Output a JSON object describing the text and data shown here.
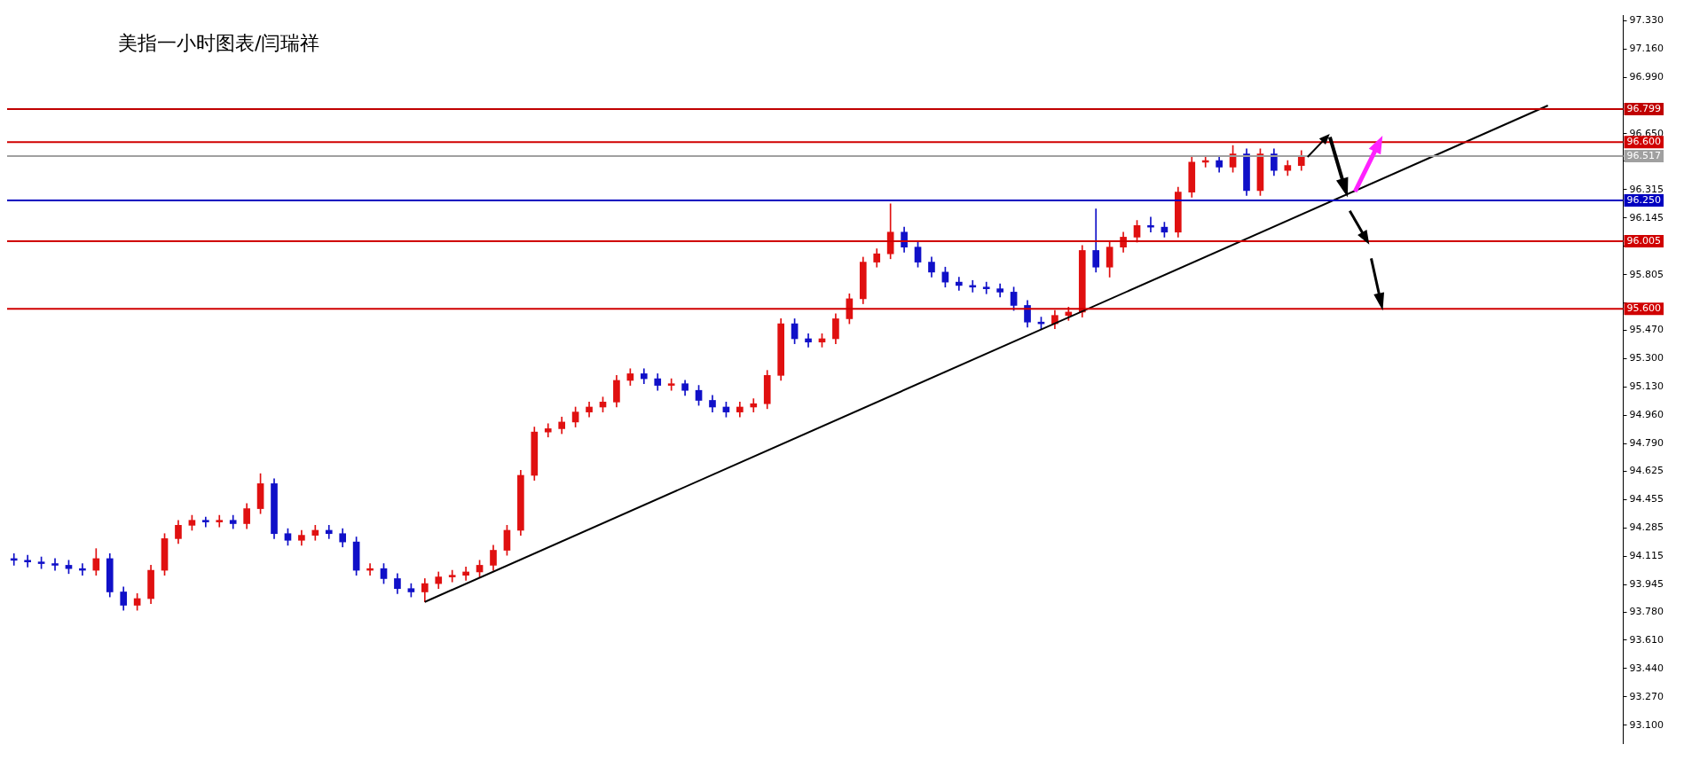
{
  "chart_data": {
    "type": "candlestick",
    "title": "美指一小时图表/闫瑞祥",
    "categories": [
      null,
      null,
      null,
      null,
      null,
      null,
      null,
      null,
      null,
      null,
      null,
      null,
      null,
      null,
      null,
      null,
      null,
      null,
      null,
      null,
      null,
      null,
      null,
      null,
      null,
      null,
      null,
      null,
      null,
      null,
      null,
      null,
      null,
      null,
      null,
      null,
      null,
      null,
      null,
      null,
      null,
      null,
      null,
      null,
      null,
      null,
      null,
      null,
      null,
      null,
      null,
      null,
      null,
      null,
      null,
      null,
      null,
      null,
      null,
      null,
      null,
      null,
      null,
      null,
      null,
      null,
      null,
      null,
      null,
      null,
      null,
      null,
      null,
      null,
      null,
      null,
      null,
      null,
      null,
      null,
      null,
      null,
      null,
      null,
      null,
      null,
      null,
      null,
      null,
      null,
      null,
      null,
      null,
      null,
      null,
      null,
      null,
      null,
      null,
      null,
      null,
      null,
      null,
      null,
      null,
      null,
      null,
      null,
      null,
      null,
      null,
      null,
      null,
      null,
      null,
      null,
      null,
      null
    ],
    "ohlc": [
      [
        94.1,
        94.13,
        94.06,
        94.09
      ],
      [
        94.09,
        94.12,
        94.05,
        94.08
      ],
      [
        94.08,
        94.11,
        94.04,
        94.07
      ],
      [
        94.07,
        94.1,
        94.03,
        94.06
      ],
      [
        94.06,
        94.09,
        94.01,
        94.04
      ],
      [
        94.04,
        94.07,
        94.0,
        94.03
      ],
      [
        94.03,
        94.16,
        94.0,
        94.1
      ],
      [
        94.1,
        94.13,
        93.87,
        93.9
      ],
      [
        93.9,
        93.93,
        93.79,
        93.82
      ],
      [
        93.82,
        93.89,
        93.79,
        93.86
      ],
      [
        93.86,
        94.06,
        93.83,
        94.03
      ],
      [
        94.03,
        94.25,
        94.0,
        94.22
      ],
      [
        94.22,
        94.33,
        94.19,
        94.3
      ],
      [
        94.3,
        94.36,
        94.27,
        94.33
      ],
      [
        94.33,
        94.35,
        94.29,
        94.32
      ],
      [
        94.32,
        94.36,
        94.29,
        94.33
      ],
      [
        94.33,
        94.36,
        94.28,
        94.31
      ],
      [
        94.31,
        94.43,
        94.28,
        94.4
      ],
      [
        94.4,
        94.61,
        94.37,
        94.55
      ],
      [
        94.55,
        94.58,
        94.22,
        94.25
      ],
      [
        94.25,
        94.28,
        94.18,
        94.21
      ],
      [
        94.21,
        94.27,
        94.18,
        94.24
      ],
      [
        94.24,
        94.3,
        94.21,
        94.27
      ],
      [
        94.27,
        94.3,
        94.22,
        94.25
      ],
      [
        94.25,
        94.28,
        94.17,
        94.2
      ],
      [
        94.2,
        94.23,
        94.0,
        94.03
      ],
      [
        94.03,
        94.07,
        94.0,
        94.04
      ],
      [
        94.04,
        94.07,
        93.95,
        93.98
      ],
      [
        93.98,
        94.01,
        93.89,
        93.92
      ],
      [
        93.92,
        93.95,
        93.87,
        93.9
      ],
      [
        93.9,
        93.98,
        93.84,
        93.95
      ],
      [
        93.95,
        94.02,
        93.92,
        93.99
      ],
      [
        93.99,
        94.03,
        93.96,
        94.0
      ],
      [
        94.0,
        94.05,
        93.97,
        94.02
      ],
      [
        94.02,
        94.09,
        93.99,
        94.06
      ],
      [
        94.06,
        94.18,
        94.03,
        94.15
      ],
      [
        94.15,
        94.3,
        94.12,
        94.27
      ],
      [
        94.27,
        94.63,
        94.24,
        94.6
      ],
      [
        94.6,
        94.89,
        94.57,
        94.86
      ],
      [
        94.86,
        94.91,
        94.83,
        94.88
      ],
      [
        94.88,
        94.95,
        94.85,
        94.92
      ],
      [
        94.92,
        95.01,
        94.89,
        94.98
      ],
      [
        94.98,
        95.04,
        94.95,
        95.01
      ],
      [
        95.01,
        95.07,
        94.98,
        95.04
      ],
      [
        95.04,
        95.2,
        95.01,
        95.17
      ],
      [
        95.17,
        95.24,
        95.14,
        95.21
      ],
      [
        95.21,
        95.24,
        95.15,
        95.18
      ],
      [
        95.18,
        95.21,
        95.11,
        95.14
      ],
      [
        95.14,
        95.18,
        95.11,
        95.15
      ],
      [
        95.15,
        95.17,
        95.08,
        95.11
      ],
      [
        95.11,
        95.14,
        95.02,
        95.05
      ],
      [
        95.05,
        95.08,
        94.98,
        95.01
      ],
      [
        95.01,
        95.04,
        94.95,
        94.98
      ],
      [
        94.98,
        95.04,
        94.95,
        95.01
      ],
      [
        95.01,
        95.06,
        94.98,
        95.03
      ],
      [
        95.03,
        95.23,
        95.0,
        95.2
      ],
      [
        95.2,
        95.54,
        95.17,
        95.51
      ],
      [
        95.51,
        95.54,
        95.39,
        95.42
      ],
      [
        95.42,
        95.45,
        95.37,
        95.4
      ],
      [
        95.4,
        95.45,
        95.37,
        95.42
      ],
      [
        95.42,
        95.57,
        95.39,
        95.54
      ],
      [
        95.54,
        95.69,
        95.51,
        95.66
      ],
      [
        95.66,
        95.91,
        95.63,
        95.88
      ],
      [
        95.88,
        95.96,
        95.85,
        95.93
      ],
      [
        95.93,
        96.23,
        95.9,
        96.06
      ],
      [
        96.06,
        96.09,
        95.94,
        95.97
      ],
      [
        95.97,
        96.0,
        95.85,
        95.88
      ],
      [
        95.88,
        95.91,
        95.79,
        95.82
      ],
      [
        95.82,
        95.85,
        95.73,
        95.76
      ],
      [
        95.76,
        95.79,
        95.71,
        95.74
      ],
      [
        95.74,
        95.77,
        95.7,
        95.73
      ],
      [
        95.73,
        95.76,
        95.69,
        95.72
      ],
      [
        95.72,
        95.75,
        95.67,
        95.7
      ],
      [
        95.7,
        95.73,
        95.59,
        95.62
      ],
      [
        95.62,
        95.65,
        95.49,
        95.52
      ],
      [
        95.52,
        95.55,
        95.48,
        95.51
      ],
      [
        95.51,
        95.59,
        95.48,
        95.56
      ],
      [
        95.56,
        95.61,
        95.53,
        95.58
      ],
      [
        95.58,
        95.98,
        95.55,
        95.95
      ],
      [
        95.95,
        96.2,
        95.82,
        95.85
      ],
      [
        95.85,
        96.0,
        95.79,
        95.97
      ],
      [
        95.97,
        96.06,
        95.94,
        96.03
      ],
      [
        96.03,
        96.13,
        96.0,
        96.1
      ],
      [
        96.1,
        96.15,
        96.06,
        96.09
      ],
      [
        96.09,
        96.12,
        96.03,
        96.06
      ],
      [
        96.06,
        96.33,
        96.03,
        96.3
      ],
      [
        96.3,
        96.51,
        96.27,
        96.48
      ],
      [
        96.48,
        96.52,
        96.45,
        96.49
      ],
      [
        96.49,
        96.51,
        96.42,
        96.45
      ],
      [
        96.45,
        96.58,
        96.42,
        96.53
      ],
      [
        96.53,
        96.56,
        96.28,
        96.31
      ],
      [
        96.31,
        96.56,
        96.28,
        96.53
      ],
      [
        96.53,
        96.56,
        96.4,
        96.43
      ],
      [
        96.43,
        96.49,
        96.4,
        96.46
      ],
      [
        96.46,
        96.55,
        96.43,
        96.52
      ],
      null,
      null,
      null,
      null,
      null,
      null,
      null,
      null,
      null,
      null,
      null,
      null,
      null,
      null,
      null,
      null,
      null,
      null,
      null,
      null,
      null,
      null,
      null
    ],
    "colors": [
      "#1010c8",
      "#1010c8",
      "#1010c8",
      "#1010c8",
      "#1010c8",
      "#1010c8",
      "#e01010",
      "#1010c8",
      "#1010c8",
      "#e01010",
      "#e01010",
      "#e01010",
      "#e01010",
      "#e01010",
      "#1010c8",
      "#e01010",
      "#1010c8",
      "#e01010",
      "#e01010",
      "#1010c8",
      "#1010c8",
      "#e01010",
      "#e01010",
      "#1010c8",
      "#1010c8",
      "#1010c8",
      "#e01010",
      "#1010c8",
      "#1010c8",
      "#1010c8",
      "#e01010",
      "#e01010",
      "#e01010",
      "#e01010",
      "#e01010",
      "#e01010",
      "#e01010",
      "#e01010",
      "#e01010",
      "#e01010",
      "#e01010",
      "#e01010",
      "#e01010",
      "#e01010",
      "#e01010",
      "#e01010",
      "#1010c8",
      "#1010c8",
      "#e01010",
      "#1010c8",
      "#1010c8",
      "#1010c8",
      "#1010c8",
      "#e01010",
      "#e01010",
      "#e01010",
      "#e01010",
      "#1010c8",
      "#1010c8",
      "#e01010",
      "#e01010",
      "#e01010",
      "#e01010",
      "#e01010",
      "#e01010",
      "#1010c8",
      "#1010c8",
      "#1010c8",
      "#1010c8",
      "#1010c8",
      "#1010c8",
      "#1010c8",
      "#1010c8",
      "#1010c8",
      "#1010c8",
      "#1010c8",
      "#e01010",
      "#e01010",
      "#e01010",
      "#1010c8",
      "#e01010",
      "#e01010",
      "#e01010",
      "#1010c8",
      "#1010c8",
      "#e01010",
      "#e01010",
      "#e01010",
      "#1010c8",
      "#e01010",
      "#1010c8",
      "#e01010",
      "#1010c8",
      "#e01010",
      "#e01010",
      null,
      null,
      null,
      null,
      null,
      null,
      null,
      null,
      null,
      null,
      null,
      null,
      null,
      null,
      null,
      null,
      null,
      null,
      null,
      null,
      null,
      null,
      null
    ],
    "series": [
      {
        "type": "line",
        "color": "#000000",
        "values": [
          null,
          null,
          null,
          null,
          null,
          null,
          null,
          null,
          null,
          null,
          null,
          null,
          null,
          null,
          null,
          null,
          null,
          null,
          null,
          null,
          null,
          null,
          null,
          null,
          null,
          null,
          null,
          null,
          null,
          null,
          93.84,
          null,
          null,
          null,
          null,
          null,
          null,
          null,
          null,
          null,
          null,
          null,
          null,
          null,
          null,
          null,
          null,
          null,
          null,
          null,
          null,
          null,
          null,
          null,
          null,
          null,
          null,
          null,
          null,
          null,
          null,
          null,
          null,
          null,
          null,
          null,
          null,
          null,
          null,
          null,
          null,
          null,
          null,
          null,
          null,
          null,
          null,
          null,
          null,
          null,
          null,
          null,
          null,
          null,
          null,
          null,
          null,
          null,
          null,
          null,
          null,
          null,
          null,
          null,
          null,
          null,
          null,
          null,
          null,
          null,
          null,
          null,
          null,
          null,
          null,
          null,
          null,
          null,
          null,
          null,
          null,
          null,
          96.82,
          null,
          null,
          null,
          null,
          null
        ]
      }
    ],
    "ylim": [
      92.99,
      97.36
    ],
    "yticks": [
      {
        "value": 97.33,
        "label": "97.330"
      },
      {
        "value": 97.16,
        "label": "97.160"
      },
      {
        "value": 96.99,
        "label": "96.990"
      },
      {
        "value": 96.65,
        "label": "96.650"
      },
      {
        "value": 96.485,
        "label": null
      },
      {
        "value": 96.315,
        "label": "96.315"
      },
      {
        "value": 96.145,
        "label": "96.145"
      },
      {
        "value": 95.975,
        "label": null
      },
      {
        "value": 95.805,
        "label": "95.805"
      },
      {
        "value": 95.635,
        "label": null
      },
      {
        "value": 95.47,
        "label": "95.470"
      },
      {
        "value": 95.3,
        "label": "95.300"
      },
      {
        "value": 95.13,
        "label": "95.130"
      },
      {
        "value": 94.96,
        "label": "94.960"
      },
      {
        "value": 94.79,
        "label": "94.790"
      },
      {
        "value": 94.625,
        "label": "94.625"
      },
      {
        "value": 94.455,
        "label": "94.455"
      },
      {
        "value": 94.285,
        "label": "94.285"
      },
      {
        "value": 94.115,
        "label": "94.115"
      },
      {
        "value": 93.945,
        "label": "93.945"
      },
      {
        "value": 93.78,
        "label": "93.780"
      },
      {
        "value": 93.61,
        "label": "93.610"
      },
      {
        "value": 93.44,
        "label": "93.440"
      },
      {
        "value": 93.27,
        "label": "93.270"
      },
      {
        "value": 93.1,
        "label": "93.100"
      }
    ],
    "tick_labels": "y",
    "ref_lines": [
      {
        "axis": "y",
        "value": 96.799,
        "label": "96.799",
        "color": "#c00000"
      },
      {
        "axis": "y",
        "value": 96.6,
        "label": "96.600",
        "color": "#d00000"
      },
      {
        "axis": "y",
        "value": 96.517,
        "label": "96.517",
        "color": "#a0a0a0"
      },
      {
        "axis": "y",
        "value": 96.25,
        "label": "96.250",
        "color": "#0000c0"
      },
      {
        "axis": "y",
        "value": 96.005,
        "label": "96.005",
        "color": "#d00000"
      },
      {
        "axis": "y",
        "value": 95.6,
        "label": "95.600",
        "color": "#d00000"
      }
    ]
  }
}
